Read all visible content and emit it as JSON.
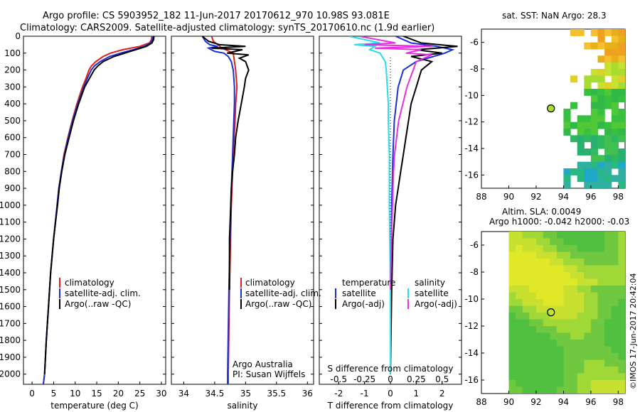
{
  "title_line1": "Argo profile: CS 5903952_182 11-Jun-2017 20170612_970 10.98S 93.081E",
  "title_line2": "Climatology: CARS2009. Satellite-adjusted climatology: synTS_20170610.nc (1.9d earlier)",
  "depth_ticks": [
    "0",
    "100",
    "200",
    "300",
    "400",
    "500",
    "600",
    "700",
    "800",
    "900",
    "1000",
    "1100",
    "1200",
    "1300",
    "1400",
    "1500",
    "1600",
    "1700",
    "1800",
    "1900",
    "2000"
  ],
  "colors": {
    "climatology": "#e0201a",
    "satellite": "#1a2fd8",
    "argo": "#000000",
    "sal_satellite": "#28dcea",
    "sal_argo": "#e830e0"
  },
  "chart_data": [
    {
      "type": "line",
      "name": "temperature",
      "xlabel": "temperature (deg C)",
      "xlim": [
        -2,
        31
      ],
      "ylim": [
        2060,
        0
      ],
      "xticks": [
        "0",
        "5",
        "10",
        "15",
        "20",
        "25",
        "30"
      ],
      "legend": [
        "climatology",
        "satellite-adj. clim.",
        "Argo(..raw -QC)"
      ],
      "series": [
        {
          "name": "climatology",
          "depth": [
            0,
            20,
            40,
            60,
            80,
            100,
            120,
            150,
            175,
            200,
            250,
            300,
            400,
            500,
            600,
            700,
            800,
            900,
            1000,
            1200,
            1400,
            1600,
            1800,
            2000,
            2060
          ],
          "values": [
            27.8,
            27.7,
            27.2,
            25.0,
            21.0,
            18.2,
            16.5,
            14.8,
            13.8,
            13.2,
            12.5,
            11.7,
            10.4,
            9.3,
            8.3,
            7.4,
            6.8,
            6.2,
            5.8,
            5.0,
            4.3,
            3.8,
            3.3,
            2.9,
            2.6
          ]
        },
        {
          "name": "satellite",
          "depth": [
            0,
            20,
            40,
            60,
            80,
            100,
            120,
            150,
            175,
            200,
            250,
            300,
            400,
            500,
            600,
            700,
            800,
            900,
            1000,
            1200,
            1400,
            1600,
            1800,
            2000,
            2060
          ],
          "values": [
            28.0,
            27.9,
            27.5,
            26.0,
            23.5,
            20.5,
            18.0,
            15.8,
            14.5,
            13.7,
            12.8,
            12.0,
            10.6,
            9.4,
            8.4,
            7.5,
            6.8,
            6.2,
            5.8,
            5.0,
            4.3,
            3.8,
            3.3,
            2.9,
            2.6
          ]
        },
        {
          "name": "Argo",
          "depth": [
            0,
            20,
            40,
            60,
            80,
            100,
            120,
            150,
            175,
            200,
            250,
            300,
            400,
            500,
            600,
            700,
            800,
            900,
            1000,
            1200,
            1400,
            1600,
            1800,
            2000
          ],
          "values": [
            28.3,
            28.2,
            27.8,
            26.5,
            24.0,
            21.5,
            19.0,
            16.5,
            15.3,
            14.4,
            13.3,
            12.2,
            10.8,
            9.6,
            8.6,
            7.6,
            6.9,
            6.3,
            5.9,
            5.0,
            4.3,
            3.8,
            3.3,
            2.9
          ]
        }
      ]
    },
    {
      "type": "line",
      "name": "salinity",
      "xlabel": "salinity",
      "xlim": [
        33.8,
        36.1
      ],
      "ylim": [
        2060,
        0
      ],
      "xticks": [
        "34",
        "34.5",
        "35",
        "35.5",
        "36"
      ],
      "legend": [
        "climatology",
        "satellite-adj. clim.",
        "Argo(..raw -QC)"
      ],
      "annotation": [
        "Argo Australia",
        "PI: Susan Wijffels"
      ],
      "series": [
        {
          "name": "climatology",
          "depth": [
            0,
            30,
            50,
            70,
            100,
            150,
            200,
            300,
            400,
            500,
            700,
            1000,
            1500,
            2000,
            2060
          ],
          "values": [
            34.45,
            34.48,
            34.55,
            34.62,
            34.8,
            34.82,
            34.84,
            34.86,
            34.84,
            34.83,
            34.8,
            34.77,
            34.74,
            34.72,
            34.72
          ]
        },
        {
          "name": "satellite",
          "depth": [
            0,
            30,
            50,
            60,
            70,
            90,
            100,
            120,
            150,
            200,
            300,
            400,
            500,
            700,
            1000,
            1500,
            2000,
            2060
          ],
          "values": [
            34.3,
            34.35,
            34.42,
            34.55,
            34.4,
            34.5,
            34.65,
            34.72,
            34.77,
            34.8,
            34.82,
            34.82,
            34.81,
            34.79,
            34.76,
            34.73,
            34.71,
            34.71
          ]
        },
        {
          "name": "Argo",
          "depth": [
            0,
            30,
            50,
            60,
            70,
            80,
            100,
            110,
            130,
            150,
            200,
            250,
            300,
            400,
            500,
            600,
            700,
            800,
            900,
            1000,
            1200,
            1500
          ],
          "values": [
            34.3,
            34.4,
            34.58,
            35.0,
            34.45,
            34.95,
            34.7,
            35.05,
            34.9,
            35.0,
            35.05,
            35.0,
            34.98,
            34.93,
            34.88,
            34.84,
            34.82,
            34.79,
            34.77,
            34.76,
            34.74,
            34.74
          ]
        }
      ]
    },
    {
      "type": "line",
      "name": "difference",
      "xlabel": "T difference from climatology",
      "xlabel_top": "S difference from climatology",
      "xlim": [
        -2.75,
        2.75
      ],
      "ylim": [
        2060,
        0
      ],
      "xticks": [
        "-2",
        "-1",
        "0",
        "1",
        "2"
      ],
      "xticks_s": [
        "-0.5",
        "-0.25",
        "0",
        "0.25",
        "0.5"
      ],
      "legend_headers": [
        "temperature",
        "salinity"
      ],
      "legend": [
        "satellite",
        "Argo(-adj)",
        "satellite",
        "Argo(-adj)"
      ],
      "series": [
        {
          "name": "temperature satellite",
          "depth": [
            0,
            40,
            60,
            80,
            100,
            150,
            200,
            300,
            500,
            700,
            1000,
            1500,
            2000
          ],
          "values": [
            0.2,
            0.8,
            1.8,
            2.4,
            2.1,
            1.0,
            0.5,
            0.3,
            0.15,
            0.1,
            0.05,
            0.02,
            0.0
          ]
        },
        {
          "name": "temperature Argo",
          "depth": [
            0,
            40,
            60,
            70,
            80,
            100,
            120,
            150,
            200,
            300,
            400,
            500,
            600,
            700,
            800,
            900,
            1000,
            1200,
            1500,
            2000
          ],
          "values": [
            0.5,
            1.2,
            2.6,
            1.8,
            1.0,
            2.0,
            0.8,
            1.6,
            1.2,
            1.0,
            0.8,
            0.7,
            0.6,
            0.5,
            0.4,
            0.3,
            0.2,
            0.1,
            0.05,
            0.0
          ]
        },
        {
          "name": "salinity satellite",
          "depth": [
            0,
            40,
            50,
            60,
            80,
            100,
            150,
            200,
            300,
            400,
            500,
            700,
            1000,
            1500,
            2000
          ],
          "values": [
            -0.4,
            -0.1,
            -0.35,
            -0.15,
            -0.2,
            -0.1,
            -0.05,
            -0.04,
            -0.03,
            -0.02,
            -0.02,
            -0.01,
            -0.01,
            0.0,
            0.0
          ],
          "scale": "salinity"
        },
        {
          "name": "salinity Argo",
          "depth": [
            0,
            40,
            50,
            60,
            70,
            80,
            100,
            110,
            150,
            200,
            300,
            400,
            500,
            600,
            700,
            800,
            1000,
            1200,
            1500
          ],
          "values": [
            -0.3,
            0.05,
            -0.25,
            0.4,
            -0.15,
            0.3,
            0.15,
            0.4,
            0.25,
            0.22,
            0.16,
            0.12,
            0.08,
            0.06,
            0.04,
            0.03,
            0.02,
            0.01,
            0.0
          ],
          "scale": "salinity"
        }
      ]
    },
    {
      "type": "heatmap",
      "name": "sst map",
      "title": "sat. SST: NaN Argo: 28.3",
      "xlim": [
        88,
        98.5
      ],
      "ylim": [
        -17,
        -5
      ],
      "xticks": [
        "88",
        "90",
        "92",
        "94",
        "96",
        "98"
      ],
      "yticks": [
        "-6",
        "-8",
        "-10",
        "-12",
        "-14",
        "-16"
      ],
      "marker": {
        "lon": 93.08,
        "lat": -10.98,
        "value": 28.3
      }
    },
    {
      "type": "heatmap",
      "name": "sla map",
      "title_line1": "Altim. SLA: 0.0049",
      "title_line2": "Argo h1000: -0.042 h2000: -0.03",
      "xlim": [
        88,
        98.5
      ],
      "ylim": [
        -17,
        -5
      ],
      "xticks": [
        "88",
        "90",
        "92",
        "94",
        "96",
        "98"
      ],
      "yticks": [
        "-6",
        "-8",
        "-10",
        "-12",
        "-14",
        "-16"
      ],
      "marker": {
        "lon": 93.08,
        "lat": -10.98
      }
    }
  ],
  "side_label": "©IMOS 17-Jun-2017 20:42:04"
}
